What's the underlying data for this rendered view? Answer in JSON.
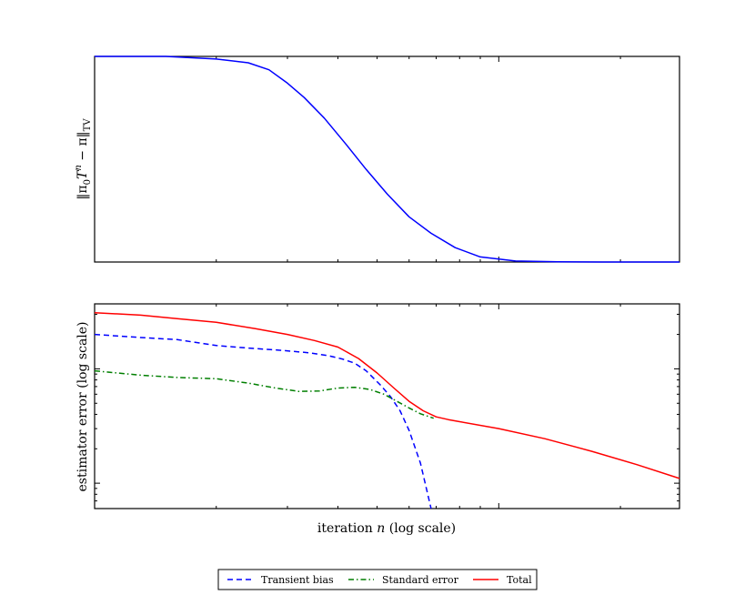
{
  "chart_data": [
    {
      "type": "line",
      "panel": "top",
      "ylabel": "‖π₀Tⁿ − π‖TV",
      "ylabel_parts": {
        "open": "‖π",
        "sub0": "0",
        "T": "T",
        "sup": "n",
        "mid": " − π‖",
        "sub": "TV"
      },
      "xscale": "log",
      "xlim": [
        1,
        28
      ],
      "ylim": [
        0,
        1
      ],
      "series": [
        {
          "color": "#0000ff",
          "style": "solid",
          "x": [
            1,
            1.5,
            2,
            2.4,
            2.7,
            3.0,
            3.3,
            3.7,
            4.2,
            4.7,
            5.3,
            6.0,
            6.8,
            7.8,
            9,
            11,
            14,
            18,
            24,
            28
          ],
          "y": [
            1.0,
            1.0,
            0.987,
            0.969,
            0.935,
            0.87,
            0.8,
            0.7,
            0.57,
            0.45,
            0.33,
            0.22,
            0.14,
            0.07,
            0.025,
            0.005,
            0.001,
            0,
            0,
            0
          ]
        }
      ]
    },
    {
      "type": "line",
      "panel": "bottom",
      "xlabel": "iteration n (log scale)",
      "xlabel_parts": {
        "pre": "iteration ",
        "var": "n",
        "post": " (log scale)"
      },
      "ylabel": "estimator error (log scale)",
      "xscale": "log",
      "yscale": "log",
      "xlim": [
        1,
        28
      ],
      "ylim": [
        0.6,
        37
      ],
      "legend": "bottom-center",
      "series": [
        {
          "name": "Transient bias",
          "color": "#0000ff",
          "style": "dashed",
          "x": [
            1,
            1.3,
            1.6,
            2.0,
            2.4,
            2.9,
            3.4,
            3.8,
            4.1,
            4.4,
            4.7,
            5.1,
            5.4,
            5.7,
            6.0,
            6.4,
            6.8
          ],
          "y": [
            20,
            18.8,
            18,
            16,
            15.2,
            14.5,
            13.8,
            13,
            12.2,
            11.2,
            9.6,
            7.2,
            5.7,
            4.3,
            2.9,
            1.5,
            0.6
          ]
        },
        {
          "name": "Standard error",
          "color": "#007f00",
          "style": "dashdot",
          "x": [
            1,
            1.3,
            1.6,
            2.0,
            2.4,
            2.8,
            3.2,
            3.6,
            4.0,
            4.4,
            4.8,
            5.2,
            5.6,
            6.0,
            6.4,
            6.9
          ],
          "y": [
            9.6,
            8.8,
            8.4,
            8.2,
            7.5,
            6.8,
            6.35,
            6.4,
            6.8,
            6.9,
            6.6,
            6.0,
            5.2,
            4.55,
            4.05,
            3.7
          ]
        },
        {
          "name": "Total",
          "color": "#ff0000",
          "style": "solid",
          "x": [
            1,
            1.3,
            1.6,
            2.0,
            2.5,
            3.0,
            3.5,
            4.0,
            4.5,
            5.0,
            5.5,
            6.0,
            6.5,
            7.0,
            7.5,
            8,
            10,
            13,
            17,
            22,
            28
          ],
          "y": [
            31,
            29.5,
            27.5,
            25.5,
            22.5,
            20,
            17.7,
            15.5,
            12.3,
            9.2,
            6.8,
            5.2,
            4.3,
            3.8,
            3.6,
            3.45,
            3.0,
            2.45,
            1.9,
            1.45,
            1.1
          ]
        }
      ]
    }
  ]
}
